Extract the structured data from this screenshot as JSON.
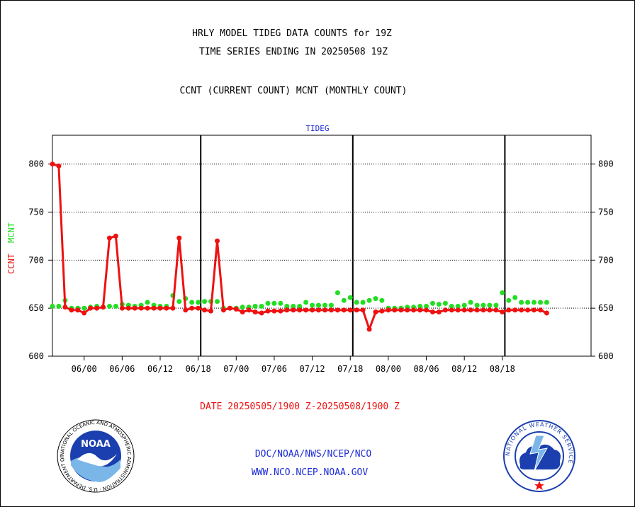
{
  "header": {
    "title_line1": "HRLY MODEL TIDEG DATA COUNTS for 19Z",
    "title_line2": "TIME SERIES ENDING IN 20250508 19Z",
    "legend_line": "CCNT (CURRENT COUNT) MCNT (MONTHLY COUNT)"
  },
  "footer": {
    "date_range": "DATE 20250505/1900 Z-20250508/1900 Z",
    "org_path": "DOC/NOAA/NWS/NCEP/NCO",
    "website": "WWW.NCO.NCEP.NOAA.GOV"
  },
  "logos": {
    "noaa_text": "NOAA",
    "noaa_ring_text": "NATIONAL OCEANIC AND ATMOSPHERIC ADMINISTRATION · U.S. DEPARTMENT OF COMMERCE",
    "nws_ring_text": "NATIONAL WEATHER SERVICE"
  },
  "colors": {
    "ccnt": "#ee1111",
    "mcnt": "#22dd22",
    "plot_label": "#1c2bd6",
    "footer_text": "#1c2bd6",
    "date_text": "#ee1111"
  },
  "chart_data": {
    "type": "line",
    "title": "TIDEG",
    "ylabel_ccnt": "CCNT",
    "ylabel_mcnt": "MCNT",
    "ylim": [
      600,
      830
    ],
    "yticks": [
      600,
      650,
      700,
      750,
      800
    ],
    "xlim": [
      0,
      85
    ],
    "xticks": [
      {
        "x": 5,
        "label": "06/00"
      },
      {
        "x": 11,
        "label": "06/06"
      },
      {
        "x": 17,
        "label": "06/12"
      },
      {
        "x": 23,
        "label": "06/18"
      },
      {
        "x": 29,
        "label": "07/00"
      },
      {
        "x": 35,
        "label": "07/06"
      },
      {
        "x": 41,
        "label": "07/12"
      },
      {
        "x": 47,
        "label": "07/18"
      },
      {
        "x": 53,
        "label": "08/00"
      },
      {
        "x": 59,
        "label": "08/06"
      },
      {
        "x": 65,
        "label": "08/12"
      },
      {
        "x": 71,
        "label": "08/18"
      }
    ],
    "day_boundaries": [
      23.4,
      47.4,
      71.4
    ],
    "grid": "horizontal dotted",
    "series": [
      {
        "name": "CCNT",
        "values": [
          800,
          798,
          651,
          648,
          648,
          645,
          650,
          650,
          651,
          723,
          725,
          650,
          650,
          650,
          650,
          650,
          650,
          650,
          650,
          650,
          723,
          648,
          650,
          650,
          648,
          647,
          720,
          648,
          650,
          649,
          646,
          648,
          646,
          645,
          647,
          647,
          647,
          648,
          648,
          648,
          648,
          648,
          648,
          648,
          648,
          648,
          648,
          648,
          648,
          648,
          628,
          646,
          647,
          648,
          648,
          648,
          648,
          648,
          648,
          648,
          646,
          646,
          648,
          648,
          648,
          648,
          648,
          648,
          648,
          648,
          648,
          646,
          648,
          648,
          648,
          648,
          648,
          648,
          645
        ]
      },
      {
        "name": "MCNT",
        "values": [
          652,
          652,
          658,
          650,
          650,
          650,
          651,
          652,
          651,
          652,
          652,
          654,
          653,
          652,
          653,
          656,
          653,
          652,
          652,
          663,
          657,
          660,
          656,
          656,
          657,
          657,
          657,
          650,
          650,
          650,
          651,
          651,
          652,
          652,
          655,
          655,
          655,
          652,
          652,
          652,
          656,
          653,
          653,
          653,
          653,
          666,
          658,
          661,
          656,
          656,
          658,
          660,
          658,
          650,
          650,
          650,
          651,
          651,
          652,
          652,
          655,
          654,
          655,
          652,
          652,
          653,
          656,
          653,
          653,
          653,
          653,
          666,
          658,
          661,
          656,
          656,
          656,
          656,
          656
        ]
      }
    ]
  }
}
